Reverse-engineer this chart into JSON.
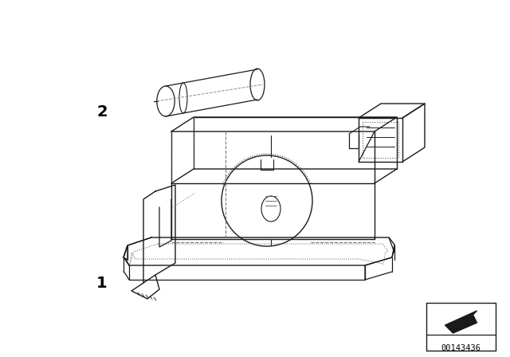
{
  "background_color": "#ffffff",
  "line_color": "#1a1a1a",
  "dot_color": "#333333",
  "label_1": "1",
  "label_2": "2",
  "part_number": "00143436",
  "fig_width": 6.4,
  "fig_height": 4.48,
  "dpi": 100
}
